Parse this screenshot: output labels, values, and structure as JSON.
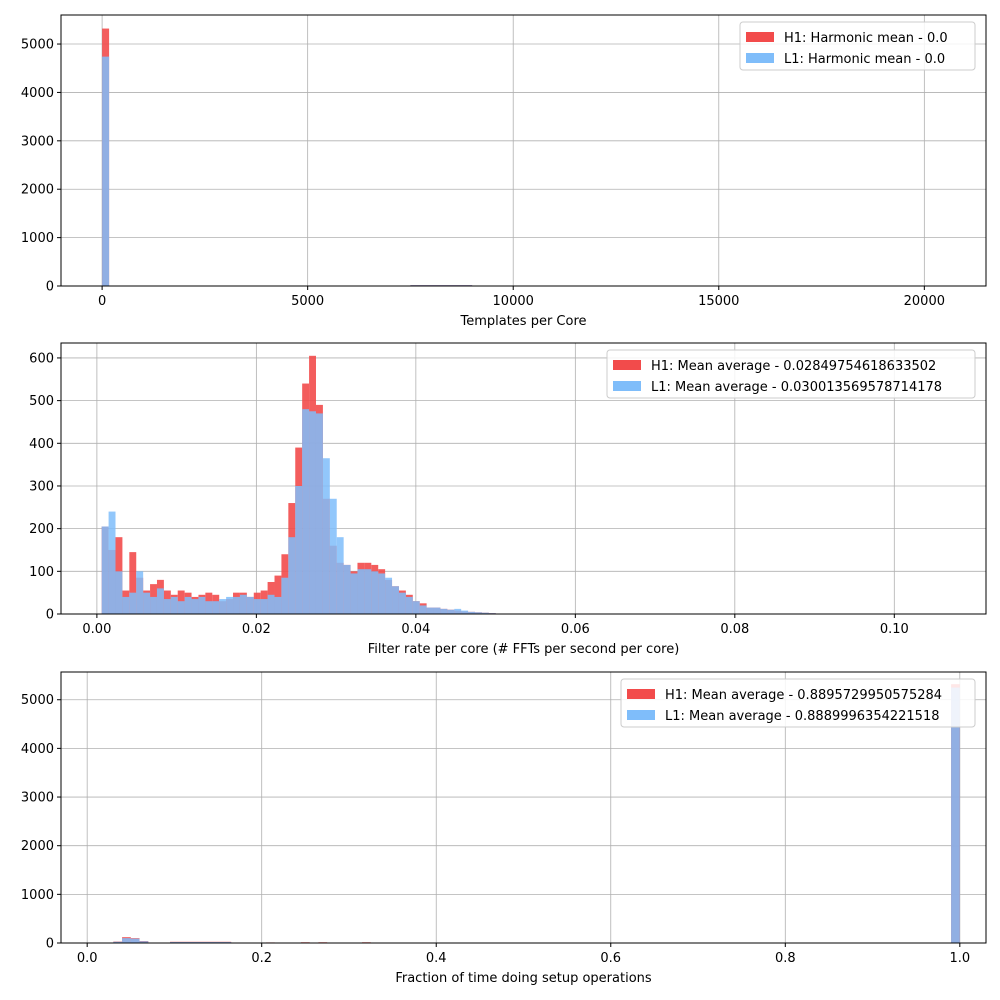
{
  "chart_data": [
    {
      "type": "histogram",
      "xlabel": "Templates per Core",
      "xlim": [
        -1000,
        21500
      ],
      "ylim": [
        0,
        5600
      ],
      "xticks": [
        0,
        5000,
        10000,
        15000,
        20000
      ],
      "xtick_labels": [
        "0",
        "5000",
        "10000",
        "15000",
        "20000"
      ],
      "yticks": [
        0,
        1000,
        2000,
        3000,
        4000,
        5000
      ],
      "ytick_labels": [
        "0",
        "1000",
        "2000",
        "3000",
        "4000",
        "5000"
      ],
      "grid": true,
      "legend_position": "top-right",
      "series": [
        {
          "name": "H1: Harmonic mean  - 0.0",
          "color": "#f24b4b",
          "bins": [
            {
              "x0": 0,
              "x1": 170,
              "y": 5320
            },
            {
              "x0": 6000,
              "x1": 7500,
              "y": 10
            },
            {
              "x0": 7500,
              "x1": 9000,
              "y": 20
            },
            {
              "x0": 9000,
              "x1": 10200,
              "y": 10
            }
          ]
        },
        {
          "name": "L1: Harmonic mean  - 0.0",
          "color": "#7fbdfa",
          "bins": [
            {
              "x0": 0,
              "x1": 170,
              "y": 4740
            },
            {
              "x0": 6000,
              "x1": 7500,
              "y": 8
            },
            {
              "x0": 7500,
              "x1": 9000,
              "y": 18
            },
            {
              "x0": 9000,
              "x1": 10200,
              "y": 8
            }
          ]
        }
      ]
    },
    {
      "type": "histogram",
      "xlabel": "Filter rate per core (# FFTs per second per core)",
      "xlim": [
        -0.0045,
        0.1115
      ],
      "ylim": [
        0,
        635
      ],
      "xticks": [
        0.0,
        0.02,
        0.04,
        0.06,
        0.08,
        0.1
      ],
      "xtick_labels": [
        "0.00",
        "0.02",
        "0.04",
        "0.06",
        "0.08",
        "0.10"
      ],
      "yticks": [
        0,
        100,
        200,
        300,
        400,
        500,
        600
      ],
      "ytick_labels": [
        "0",
        "100",
        "200",
        "300",
        "400",
        "500",
        "600"
      ],
      "grid": true,
      "legend_position": "top-right",
      "series": [
        {
          "name": "H1: Mean average - 0.02849754618633502",
          "color": "#f24b4b",
          "x0": 0.0006,
          "binwidth": 0.000867,
          "values": [
            205,
            150,
            180,
            55,
            145,
            85,
            55,
            70,
            80,
            55,
            45,
            55,
            50,
            40,
            45,
            50,
            45,
            30,
            35,
            50,
            50,
            40,
            50,
            55,
            75,
            90,
            140,
            260,
            390,
            540,
            605,
            490,
            270,
            160,
            120,
            115,
            100,
            120,
            120,
            115,
            105,
            80,
            65,
            55,
            45,
            30,
            25,
            15,
            15,
            12,
            10,
            8,
            6,
            5,
            4,
            3,
            2,
            1,
            1
          ]
        },
        {
          "name": "L1: Mean average - 0.030013569578714178",
          "color": "#7fbdfa",
          "x0": 0.0006,
          "binwidth": 0.000867,
          "values": [
            205,
            240,
            100,
            40,
            50,
            100,
            50,
            40,
            60,
            35,
            40,
            30,
            40,
            35,
            40,
            30,
            30,
            35,
            40,
            40,
            45,
            40,
            35,
            35,
            45,
            40,
            85,
            180,
            300,
            480,
            475,
            470,
            365,
            270,
            180,
            115,
            95,
            105,
            105,
            100,
            95,
            85,
            65,
            50,
            40,
            30,
            20,
            15,
            15,
            12,
            10,
            12,
            8,
            5,
            4,
            3,
            2,
            1,
            1
          ]
        }
      ]
    },
    {
      "type": "histogram",
      "xlabel": "Fraction of time doing setup operations",
      "xlim": [
        -0.03,
        1.03
      ],
      "ylim": [
        0,
        5570
      ],
      "xticks": [
        0.0,
        0.2,
        0.4,
        0.6,
        0.8,
        1.0
      ],
      "xtick_labels": [
        "0.0",
        "0.2",
        "0.4",
        "0.6",
        "0.8",
        "1.0"
      ],
      "yticks": [
        0,
        1000,
        2000,
        3000,
        4000,
        5000
      ],
      "ytick_labels": [
        "0",
        "1000",
        "2000",
        "3000",
        "4000",
        "5000"
      ],
      "grid": true,
      "legend_position": "top-right",
      "series": [
        {
          "name": "H1: Mean average - 0.8895729950575284",
          "color": "#f24b4b",
          "bins": [
            {
              "x0": 0.03,
              "x1": 0.04,
              "y": 30
            },
            {
              "x0": 0.04,
              "x1": 0.05,
              "y": 120
            },
            {
              "x0": 0.05,
              "x1": 0.06,
              "y": 100
            },
            {
              "x0": 0.06,
              "x1": 0.07,
              "y": 40
            },
            {
              "x0": 0.095,
              "x1": 0.165,
              "y": 25
            },
            {
              "x0": 0.205,
              "x1": 0.215,
              "y": 12
            },
            {
              "x0": 0.245,
              "x1": 0.255,
              "y": 15
            },
            {
              "x0": 0.265,
              "x1": 0.275,
              "y": 15
            },
            {
              "x0": 0.315,
              "x1": 0.325,
              "y": 15
            },
            {
              "x0": 0.99,
              "x1": 1.0,
              "y": 5320
            }
          ]
        },
        {
          "name": "L1: Mean average - 0.8889996354221518",
          "color": "#7fbdfa",
          "bins": [
            {
              "x0": 0.03,
              "x1": 0.04,
              "y": 25
            },
            {
              "x0": 0.04,
              "x1": 0.05,
              "y": 100
            },
            {
              "x0": 0.05,
              "x1": 0.06,
              "y": 90
            },
            {
              "x0": 0.06,
              "x1": 0.07,
              "y": 35
            },
            {
              "x0": 0.095,
              "x1": 0.165,
              "y": 20
            },
            {
              "x0": 0.205,
              "x1": 0.215,
              "y": 8
            },
            {
              "x0": 0.99,
              "x1": 1.0,
              "y": 5250
            }
          ]
        }
      ]
    }
  ]
}
